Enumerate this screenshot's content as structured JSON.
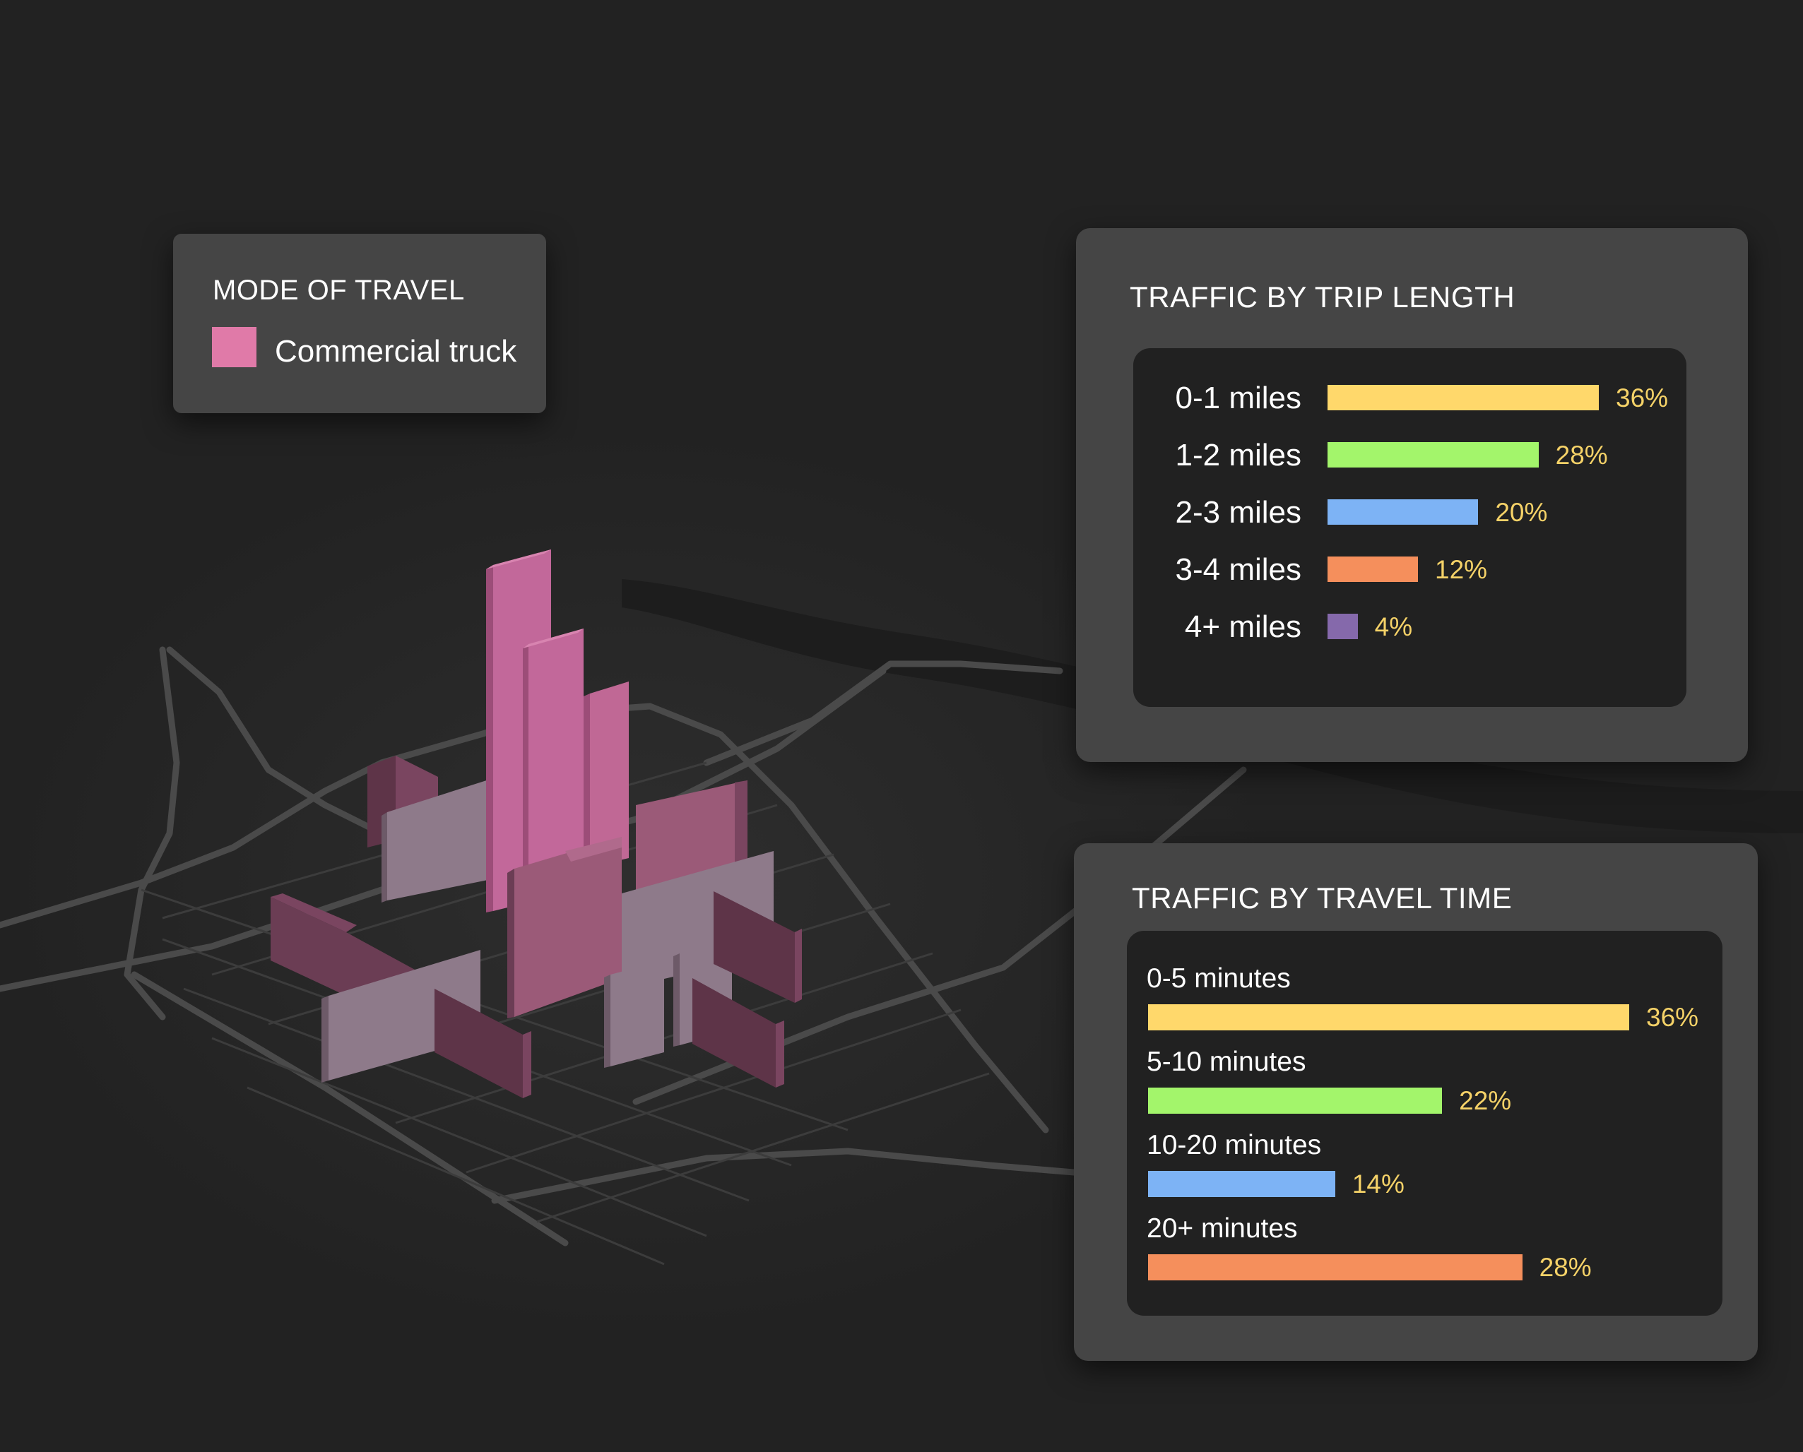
{
  "legend": {
    "title": "MODE OF TRAVEL",
    "items": [
      {
        "label": "Commercial truck",
        "color": "#e07aa8"
      }
    ]
  },
  "colors": {
    "background": "#222222",
    "panel": "#454545",
    "inner_panel": "#212121",
    "value_text": "#f5d268",
    "road": "#4a4a4a",
    "pink_building": "#c2689a",
    "mauve_building": "#a06080",
    "gray_building": "#8e7a8a",
    "dark_building": "#6b3d54"
  },
  "chart_data": [
    {
      "type": "bar",
      "orientation": "horizontal",
      "title": "TRAFFIC BY TRIP LENGTH",
      "categories": [
        "0-1 miles",
        "1-2 miles",
        "2-3 miles",
        "3-4 miles",
        "4+ miles"
      ],
      "values": [
        36,
        28,
        20,
        12,
        4
      ],
      "value_labels": [
        "36%",
        "28%",
        "20%",
        "12%",
        "4%"
      ],
      "colors": [
        "#ffd86b",
        "#a3f56b",
        "#7db3f5",
        "#f58f5c",
        "#8569ab"
      ]
    },
    {
      "type": "bar",
      "orientation": "horizontal",
      "title": "TRAFFIC BY TRAVEL TIME",
      "categories": [
        "0-5 minutes",
        "5-10 minutes",
        "10-20 minutes",
        "20+ minutes"
      ],
      "values": [
        36,
        22,
        14,
        28
      ],
      "value_labels": [
        "36%",
        "22%",
        "14%",
        "28%"
      ],
      "colors": [
        "#ffd86b",
        "#a3f56b",
        "#7db3f5",
        "#f58f5c"
      ]
    }
  ]
}
